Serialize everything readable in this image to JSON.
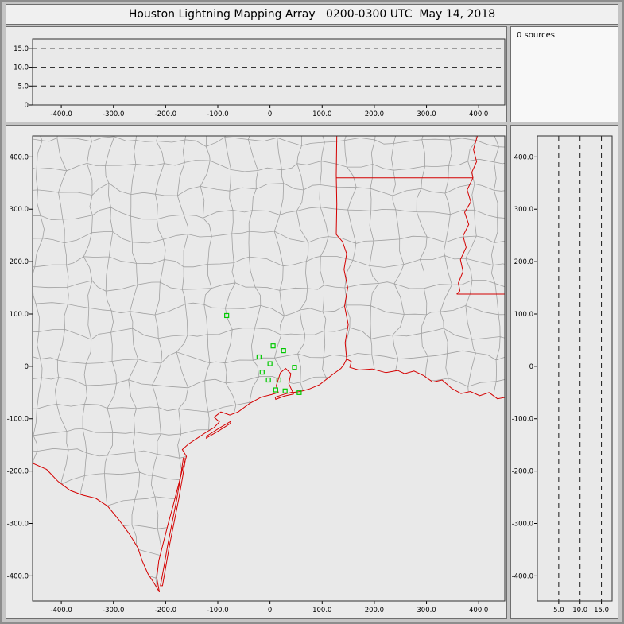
{
  "title": "Houston Lightning Mapping Array   0200-0300 UTC  May 14, 2018",
  "sources_panel": {
    "label": "0 sources"
  },
  "sources_count": 0,
  "colors": {
    "window_bg": "#c4c4c4",
    "titlebar_bg": "#f0f0f0",
    "panel_bg": "#ebebeb",
    "sources_bg": "#f8f8f8",
    "plot_bg": "#e9e9e9",
    "frame": "#2f2f2f",
    "county_line": "#a0a0a0",
    "state_line": "#d40000",
    "dash_line": "#1a1a1a",
    "station": "#00c800"
  },
  "chart_data": [
    {
      "type": "scatter",
      "panel": "altitude_km_vs_east_west_km",
      "xlim": [
        -455,
        450
      ],
      "ylim": [
        0,
        17.5
      ],
      "x_tick_labels": [
        "-400.0",
        "-300.0",
        "-200.0",
        "-100.0",
        "0",
        "100.0",
        "200.0",
        "300.0",
        "400.0"
      ],
      "y_tick_labels": [
        "0",
        "5.0",
        "10.0",
        "15.0"
      ],
      "dashed_hlines_km": [
        5,
        10,
        15
      ],
      "points": [],
      "note": "no lightning sources plotted this hour"
    },
    {
      "type": "scatter",
      "panel": "plan_view_map_km",
      "xlim": [
        -455,
        450
      ],
      "ylim": [
        -448,
        440
      ],
      "x_tick_labels": [
        "-400.0",
        "-300.0",
        "-200.0",
        "-100.0",
        "0",
        "100.0",
        "200.0",
        "300.0",
        "400.0"
      ],
      "y_tick_labels": [
        "400.0",
        "300.0",
        "200.0",
        "100.0",
        "0",
        "-100.0",
        "-200.0",
        "-300.0",
        "-400.0"
      ],
      "points": [],
      "station_markers_km": [
        [
          -83,
          97
        ],
        [
          6,
          39
        ],
        [
          26,
          30
        ],
        [
          -21,
          18
        ],
        [
          0,
          5
        ],
        [
          -15,
          -11
        ],
        [
          47,
          -2
        ],
        [
          17,
          -26
        ],
        [
          -3,
          -26
        ],
        [
          29,
          -47
        ],
        [
          11,
          -45
        ],
        [
          56,
          -50
        ]
      ],
      "map_layers": [
        "county boundaries (gray)",
        "state borders, rivers and coastline (red)",
        "LMA station markers (green squares)"
      ]
    },
    {
      "type": "scatter",
      "panel": "north_south_km_vs_altitude_km",
      "xlim": [
        0,
        17.5
      ],
      "ylim": [
        -448,
        440
      ],
      "x_tick_labels": [
        "5.0",
        "10.0",
        "15.0"
      ],
      "y_tick_labels": [
        "400.0",
        "300.0",
        "200.0",
        "100.0",
        "0",
        "-100.0",
        "-200.0",
        "-300.0",
        "-400.0"
      ],
      "dashed_vlines_km": [
        5,
        10,
        15
      ],
      "points": []
    }
  ],
  "map_geometry_km": {
    "red_lines": {
      "rio-grande-river": [
        [
          -455,
          -185
        ],
        [
          -428,
          -197
        ],
        [
          -406,
          -220
        ],
        [
          -383,
          -237
        ],
        [
          -359,
          -246
        ],
        [
          -334,
          -252
        ],
        [
          -311,
          -267
        ],
        [
          -289,
          -294
        ],
        [
          -269,
          -321
        ],
        [
          -253,
          -347
        ],
        [
          -245,
          -371
        ],
        [
          -234,
          -396
        ],
        [
          -221,
          -416
        ],
        [
          -212,
          -431
        ]
      ],
      "gulf-coastline": [
        [
          -212,
          -431
        ],
        [
          -217,
          -404
        ],
        [
          -213,
          -371
        ],
        [
          -205,
          -339
        ],
        [
          -196,
          -304
        ],
        [
          -186,
          -267
        ],
        [
          -176,
          -229
        ],
        [
          -167,
          -194
        ],
        [
          -160,
          -172
        ],
        [
          -168,
          -159
        ],
        [
          -157,
          -149
        ],
        [
          -142,
          -139
        ],
        [
          -124,
          -127
        ],
        [
          -107,
          -117
        ],
        [
          -97,
          -106
        ],
        [
          -107,
          -97
        ],
        [
          -94,
          -87
        ],
        [
          -77,
          -93
        ],
        [
          -61,
          -87
        ],
        [
          -39,
          -71
        ],
        [
          -17,
          -59
        ],
        [
          3,
          -54
        ],
        [
          16,
          -50
        ],
        [
          12,
          -37
        ],
        [
          20,
          -12
        ],
        [
          30,
          -4
        ],
        [
          40,
          -14
        ],
        [
          36,
          -33
        ],
        [
          44,
          -50
        ],
        [
          58,
          -48
        ],
        [
          76,
          -43
        ],
        [
          95,
          -35
        ],
        [
          118,
          -17
        ],
        [
          136,
          -4
        ],
        [
          142,
          4
        ],
        [
          147,
          14
        ],
        [
          156,
          9
        ],
        [
          153,
          -2
        ],
        [
          170,
          -7
        ],
        [
          196,
          -5
        ],
        [
          222,
          -12
        ],
        [
          245,
          -8
        ],
        [
          258,
          -14
        ],
        [
          276,
          -9
        ],
        [
          295,
          -18
        ],
        [
          312,
          -30
        ],
        [
          330,
          -26
        ],
        [
          348,
          -42
        ],
        [
          366,
          -52
        ],
        [
          384,
          -48
        ],
        [
          402,
          -56
        ],
        [
          420,
          -50
        ],
        [
          436,
          -62
        ],
        [
          458,
          -58
        ]
      ],
      "texas-louisiana-border": [
        [
          147,
          14
        ],
        [
          144,
          45
        ],
        [
          150,
          80
        ],
        [
          143,
          115
        ],
        [
          149,
          150
        ],
        [
          142,
          185
        ],
        [
          147,
          215
        ],
        [
          139,
          238
        ],
        [
          127,
          252
        ],
        [
          128,
          310
        ],
        [
          127,
          365
        ],
        [
          128,
          442
        ]
      ],
      "arkansas-louisiana-border": [
        [
          127,
          360
        ],
        [
          389,
          360
        ]
      ],
      "mississippi-river": [
        [
          398,
          442
        ],
        [
          390,
          414
        ],
        [
          396,
          391
        ],
        [
          387,
          371
        ],
        [
          389,
          360
        ],
        [
          378,
          337
        ],
        [
          385,
          314
        ],
        [
          373,
          294
        ],
        [
          381,
          271
        ],
        [
          370,
          249
        ],
        [
          376,
          227
        ],
        [
          365,
          204
        ],
        [
          370,
          181
        ],
        [
          361,
          159
        ],
        [
          364,
          144
        ],
        [
          358,
          138
        ]
      ],
      "louisiana-mississippi-border": [
        [
          358,
          138
        ],
        [
          458,
          138
        ]
      ]
    },
    "islands": {
      "padre": [
        [
          -206,
          -419
        ],
        [
          -199,
          -379
        ],
        [
          -192,
          -339
        ],
        [
          -184,
          -299
        ],
        [
          -175,
          -254
        ],
        [
          -167,
          -209
        ],
        [
          -162,
          -177
        ],
        [
          -166,
          -175
        ],
        [
          -171,
          -209
        ],
        [
          -179,
          -255
        ],
        [
          -188,
          -301
        ],
        [
          -196,
          -341
        ],
        [
          -203,
          -381
        ],
        [
          -210,
          -419
        ]
      ],
      "matagorda": [
        [
          -122,
          -137
        ],
        [
          -98,
          -123
        ],
        [
          -76,
          -109
        ],
        [
          -75,
          -105
        ],
        [
          -99,
          -119
        ],
        [
          -121,
          -133
        ]
      ],
      "galveston": [
        [
          10,
          -59
        ],
        [
          28,
          -53
        ],
        [
          44,
          -49
        ],
        [
          45,
          -53
        ],
        [
          27,
          -57
        ],
        [
          11,
          -63
        ]
      ]
    },
    "county_grid": {
      "cell": 46,
      "jitter": 12,
      "mid_jitter": 5,
      "seed": 20180514
    }
  }
}
